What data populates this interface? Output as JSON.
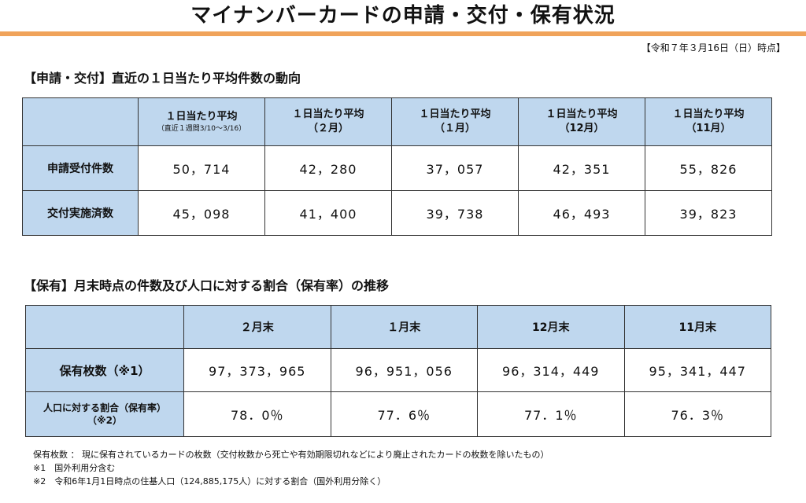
{
  "title": "マイナンバーカードの申請・交付・保有状況",
  "as_of": "【令和７年３月16日（日）時点】",
  "section1": {
    "heading": "【申請・交付】直近の１日当たり平均件数の動向",
    "columns": [
      {
        "label": "１日当たり平均",
        "sub": "（直近１週間3/10～3/16）"
      },
      {
        "label": "１日当たり平均",
        "sub": "（２月）"
      },
      {
        "label": "１日当たり平均",
        "sub": "（１月）"
      },
      {
        "label": "１日当たり平均",
        "sub": "（12月）"
      },
      {
        "label": "１日当たり平均",
        "sub": "（11月）"
      }
    ],
    "rows": [
      {
        "label": "申請受付件数",
        "values": [
          "50，714",
          "42，280",
          "37，057",
          "42，351",
          "55，826"
        ]
      },
      {
        "label": "交付実施済数",
        "values": [
          "45，098",
          "41，400",
          "39，738",
          "46，493",
          "39，823"
        ]
      }
    ]
  },
  "section2": {
    "heading": "【保有】月末時点の件数及び人口に対する割合（保有率）の推移",
    "columns": [
      "２月末",
      "１月末",
      "12月末",
      "11月末"
    ],
    "rows": [
      {
        "label": "保有枚数（※1）",
        "values": [
          "97，373，965",
          "96，951，056",
          "96，314，449",
          "95，341，447"
        ]
      },
      {
        "label": "人口に対する割合（保有率）",
        "label2": "（※2）",
        "values": [
          "78．0％",
          "77．6％",
          "77．1％",
          "76．3％"
        ]
      }
    ]
  },
  "notes": [
    "保有枚数 ： 現に保有されているカードの枚数（交付枚数から死亡や有効期限切れなどにより廃止されたカードの枚数を除いたもの）",
    "※1　国外利用分含む",
    "※2　令和6年1月1日時点の住基人口（124,885,175人）に対する割合（国外利用分除く）"
  ],
  "colors": {
    "header_fill": "#bfd7ee",
    "title_rule": "#f0a35a"
  }
}
